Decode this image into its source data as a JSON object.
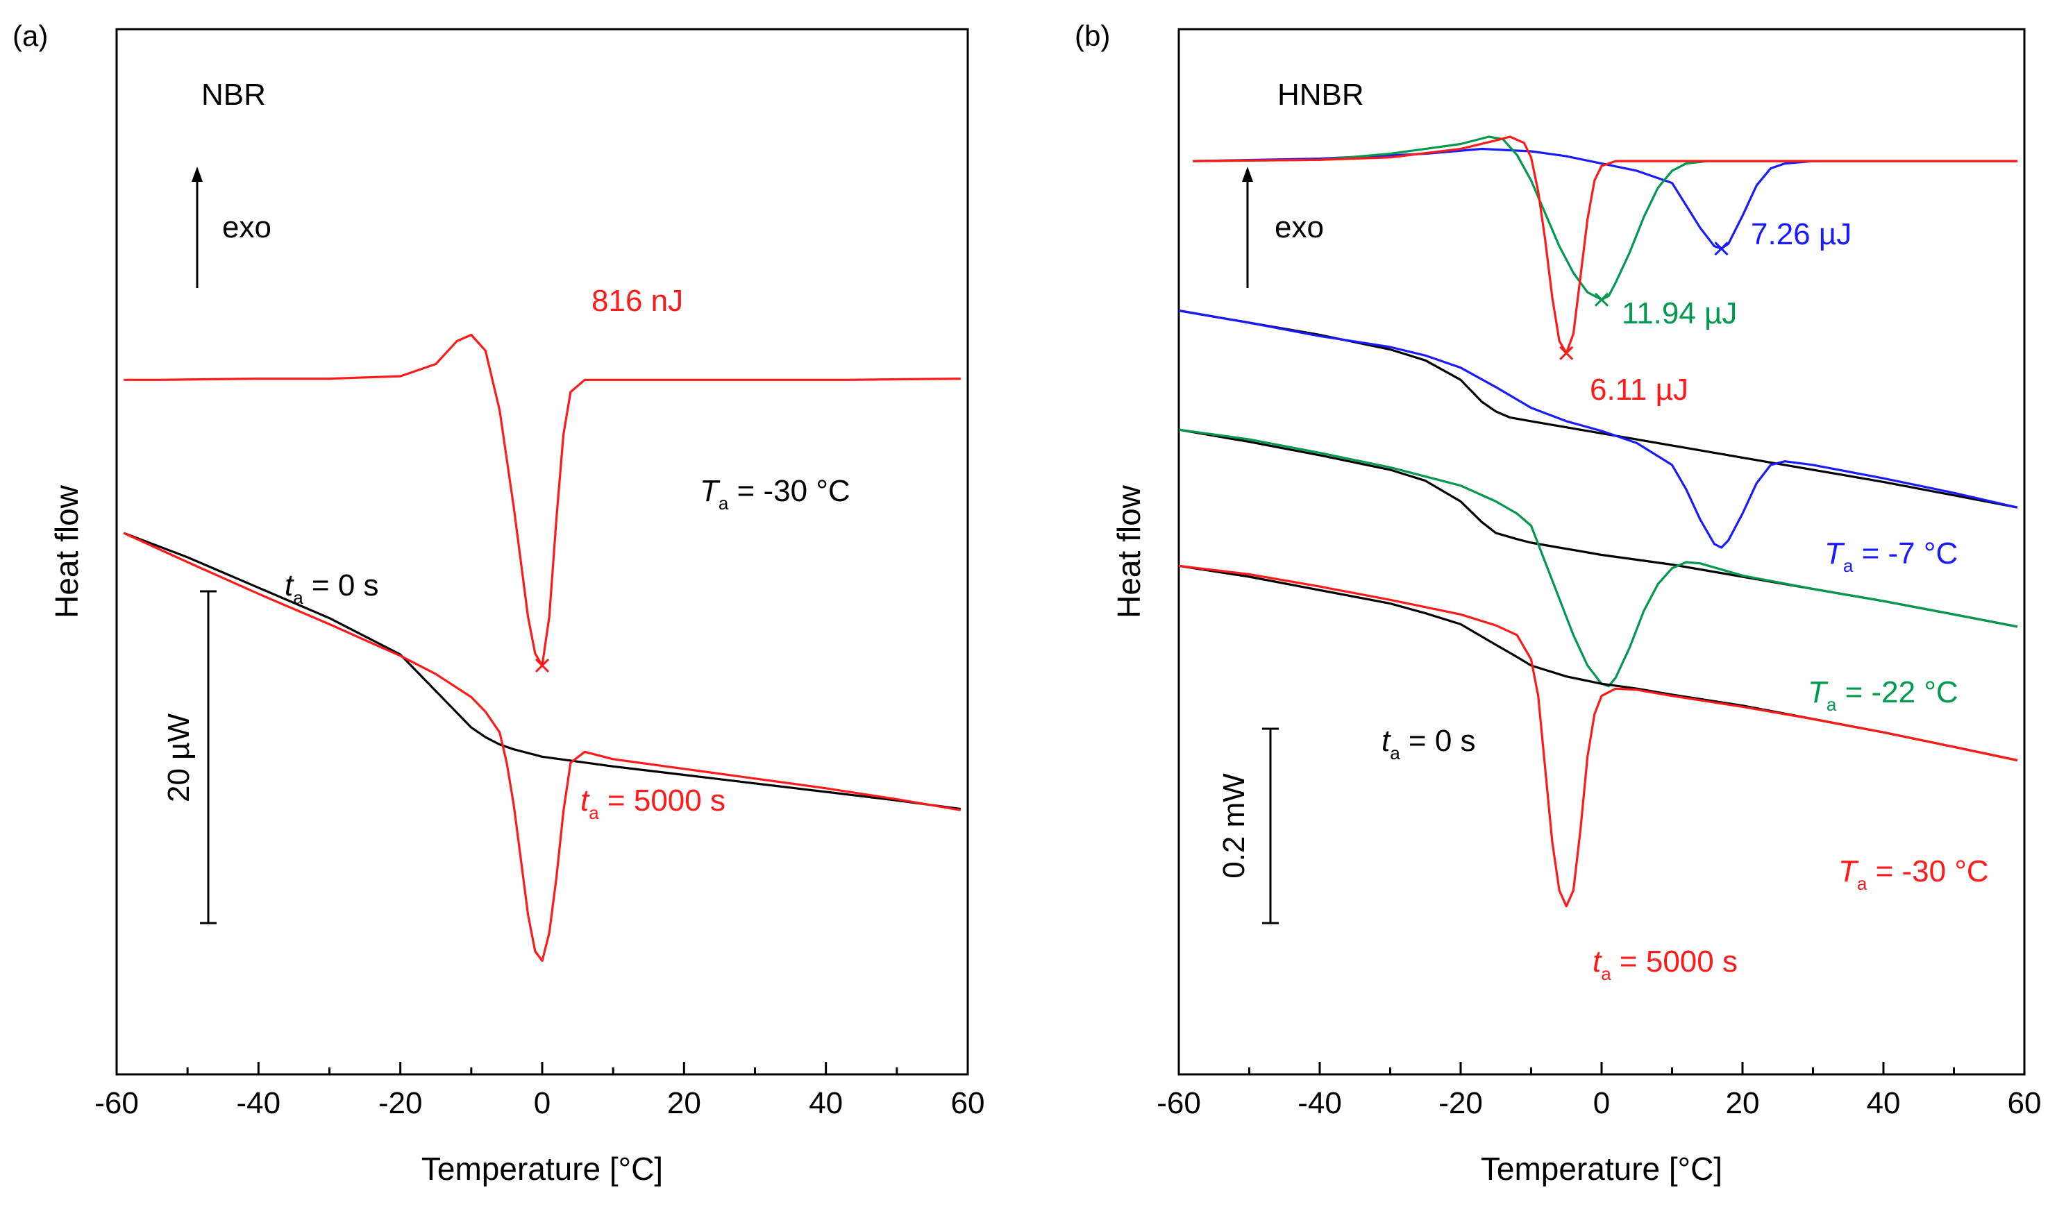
{
  "figure": {
    "panels": [
      {
        "tag": "(a)",
        "title": "NBR"
      },
      {
        "tag": "(b)",
        "title": "HNBR"
      }
    ],
    "colors": {
      "black": "#000000",
      "red": "#ff1a1a",
      "green": "#00994d",
      "blue": "#1a1aff"
    }
  },
  "chart_data": [
    {
      "type": "line",
      "panel": "(a)",
      "title": "NBR",
      "xlabel": "Temperature [°C]",
      "ylabel": "Heat flow",
      "xlim": [
        -60,
        60
      ],
      "xticks": [
        -60,
        -40,
        -20,
        0,
        20,
        40,
        60
      ],
      "x_tick_labels": [
        "-60",
        "-40",
        "-20",
        "0",
        "20",
        "40",
        "60"
      ],
      "scale_bar": "20 µW",
      "y_unit": "µW",
      "ylim": [
        -48,
        22
      ],
      "series": [
        {
          "name": "difference curve (exo up)",
          "color": "#ff1a1a",
          "x": [
            -59,
            -54,
            -40,
            -30,
            -20,
            -15,
            -12,
            -10,
            -8,
            -6,
            -4,
            -2,
            -1,
            0,
            1,
            2,
            3,
            4,
            6,
            20,
            40,
            43,
            59
          ],
          "y": [
            0,
            0,
            0.1,
            0.1,
            0.3,
            1.3,
            3.2,
            3.7,
            2.4,
            -2.5,
            -10.5,
            -19.5,
            -22.5,
            -23.5,
            -19.5,
            -11.5,
            -4.5,
            -1.0,
            0,
            0,
            0,
            0,
            0.1
          ]
        },
        {
          "name": "t_a = 0 s",
          "color": "#000000",
          "x": [
            -59,
            -50,
            -40,
            -30,
            -20,
            -15,
            -10,
            -8,
            -6,
            -4,
            0,
            10,
            20,
            30,
            40,
            50,
            59
          ],
          "y": [
            -12.6,
            -14.6,
            -17.1,
            -19.6,
            -22.6,
            -25.6,
            -28.6,
            -29.4,
            -30.0,
            -30.4,
            -31.0,
            -31.8,
            -32.5,
            -33.2,
            -33.9,
            -34.6,
            -35.3
          ]
        },
        {
          "name": "t_a = 5000 s",
          "color": "#ff1a1a",
          "x": [
            -59,
            -50,
            -40,
            -30,
            -20,
            -15,
            -10,
            -8,
            -6,
            -5,
            -4,
            -3,
            -2,
            -1,
            0,
            1,
            2,
            3,
            4,
            6,
            10,
            20,
            30,
            40,
            50,
            59
          ],
          "y": [
            -12.6,
            -15.0,
            -17.6,
            -20.1,
            -22.7,
            -24.2,
            -26.1,
            -27.3,
            -29.0,
            -31.5,
            -35.0,
            -39.5,
            -44.0,
            -47.0,
            -47.8,
            -45.5,
            -41.0,
            -35.5,
            -31.5,
            -30.6,
            -31.2,
            -32.0,
            -32.8,
            -33.6,
            -34.5,
            -35.4
          ]
        }
      ],
      "annotations": [
        {
          "text": "816 nJ",
          "color": "#ff1a1a"
        },
        {
          "text": "exo",
          "color": "#000000"
        },
        {
          "label": "T",
          "sub": "a",
          "value": " = -30 °C",
          "color": "#000000"
        },
        {
          "label": "t",
          "sub": "a",
          "value": " = 0 s",
          "color": "#000000"
        },
        {
          "label": "t",
          "sub": "a",
          "value": " = 5000 s",
          "color": "#ff1a1a"
        }
      ]
    },
    {
      "type": "line",
      "panel": "(b)",
      "title": "HNBR",
      "xlabel": "Temperature [°C]",
      "ylabel": "Heat flow",
      "xlim": [
        -60,
        60
      ],
      "xticks": [
        -60,
        -40,
        -20,
        0,
        20,
        40,
        60
      ],
      "x_tick_labels": [
        "-60",
        "-40",
        "-20",
        "0",
        "20",
        "40",
        "60"
      ],
      "scale_bar": "0.2 mW",
      "y_unit": "mW",
      "ylim": [
        -0.66,
        0.04
      ],
      "series": [
        {
          "name": "difference curve T_a = -7 °C",
          "color": "#1a1aff",
          "x": [
            -58,
            -40,
            -25,
            -17,
            -10,
            -5,
            0,
            5,
            10,
            14,
            16,
            17,
            18,
            20,
            22,
            24,
            26,
            30,
            45,
            59
          ],
          "y": [
            0,
            0.002,
            0.006,
            0.01,
            0.008,
            0.004,
            -0.002,
            -0.008,
            -0.018,
            -0.055,
            -0.07,
            -0.072,
            -0.068,
            -0.045,
            -0.02,
            -0.006,
            -0.002,
            0,
            0,
            0
          ]
        },
        {
          "name": "difference curve T_a = -22 °C",
          "color": "#00994d",
          "x": [
            -58,
            -40,
            -30,
            -20,
            -16,
            -14,
            -12,
            -10,
            -8,
            -6,
            -4,
            -2,
            0,
            1,
            2,
            4,
            6,
            8,
            10,
            12,
            15,
            20,
            59
          ],
          "y": [
            0,
            0.001,
            0.006,
            0.014,
            0.02,
            0.018,
            0.005,
            -0.016,
            -0.043,
            -0.07,
            -0.092,
            -0.108,
            -0.114,
            -0.111,
            -0.1,
            -0.075,
            -0.046,
            -0.022,
            -0.008,
            -0.002,
            0,
            0,
            0
          ]
        },
        {
          "name": "difference curve T_a = -30 °C",
          "color": "#ff1a1a",
          "x": [
            -58,
            -40,
            -30,
            -20,
            -15,
            -13,
            -11,
            -10,
            -9,
            -8,
            -7,
            -6,
            -5,
            -4,
            -3,
            -2,
            -1,
            0,
            2,
            59
          ],
          "y": [
            0,
            0.001,
            0.003,
            0.01,
            0.017,
            0.02,
            0.015,
            0.003,
            -0.025,
            -0.065,
            -0.112,
            -0.148,
            -0.158,
            -0.142,
            -0.095,
            -0.048,
            -0.016,
            -0.004,
            0,
            0
          ]
        },
        {
          "name": "t_a = 0 s (T_a = -7 °C)",
          "color": "#000000",
          "x": [
            -60,
            -50,
            -40,
            -30,
            -25,
            -20,
            -17,
            -15,
            -13,
            -10,
            0,
            10,
            20,
            30,
            40,
            50,
            59
          ],
          "y": [
            -0.123,
            -0.133,
            -0.143,
            -0.155,
            -0.164,
            -0.18,
            -0.198,
            -0.206,
            -0.211,
            -0.214,
            -0.224,
            -0.234,
            -0.244,
            -0.254,
            -0.264,
            -0.275,
            -0.285
          ]
        },
        {
          "name": "t_a = 5000 s (T_a = -7 °C)",
          "color": "#1a1aff",
          "x": [
            -60,
            -50,
            -40,
            -30,
            -25,
            -20,
            -15,
            -10,
            -5,
            0,
            5,
            10,
            12,
            14,
            16,
            17,
            18,
            20,
            22,
            24,
            26,
            30,
            40,
            50,
            59
          ],
          "y": [
            -0.123,
            -0.133,
            -0.144,
            -0.153,
            -0.16,
            -0.17,
            -0.186,
            -0.203,
            -0.214,
            -0.222,
            -0.232,
            -0.25,
            -0.27,
            -0.295,
            -0.315,
            -0.318,
            -0.312,
            -0.29,
            -0.265,
            -0.25,
            -0.247,
            -0.25,
            -0.261,
            -0.273,
            -0.285
          ]
        },
        {
          "name": "t_a = 0 s (T_a = -22 °C)",
          "color": "#000000",
          "x": [
            -60,
            -50,
            -40,
            -30,
            -25,
            -20,
            -17,
            -15,
            -12,
            -10,
            0,
            10,
            20,
            30,
            40,
            50,
            59
          ],
          "y": [
            -0.221,
            -0.231,
            -0.242,
            -0.254,
            -0.263,
            -0.28,
            -0.297,
            -0.306,
            -0.311,
            -0.314,
            -0.324,
            -0.332,
            -0.342,
            -0.352,
            -0.362,
            -0.373,
            -0.383
          ]
        },
        {
          "name": "t_a = 5000 s (T_a = -22 °C)",
          "color": "#00994d",
          "x": [
            -60,
            -50,
            -40,
            -30,
            -20,
            -15,
            -12,
            -10,
            -8,
            -6,
            -4,
            -2,
            0,
            1,
            2,
            4,
            6,
            8,
            10,
            12,
            14,
            20,
            30,
            40,
            50,
            59
          ],
          "y": [
            -0.221,
            -0.229,
            -0.24,
            -0.252,
            -0.267,
            -0.28,
            -0.29,
            -0.3,
            -0.33,
            -0.36,
            -0.39,
            -0.415,
            -0.43,
            -0.432,
            -0.425,
            -0.4,
            -0.37,
            -0.348,
            -0.335,
            -0.33,
            -0.331,
            -0.341,
            -0.352,
            -0.362,
            -0.373,
            -0.383
          ]
        },
        {
          "name": "t_a = 0 s (T_a = -30 °C)",
          "color": "#000000",
          "x": [
            -60,
            -50,
            -40,
            -30,
            -25,
            -20,
            -15,
            -12,
            -10,
            -5,
            0,
            5,
            10,
            20,
            30,
            40,
            50,
            59
          ],
          "y": [
            -0.333,
            -0.342,
            -0.353,
            -0.364,
            -0.372,
            -0.381,
            -0.398,
            -0.408,
            -0.415,
            -0.424,
            -0.43,
            -0.434,
            -0.439,
            -0.448,
            -0.459,
            -0.47,
            -0.482,
            -0.493
          ]
        },
        {
          "name": "t_a = 5000 s (T_a = -30 °C)",
          "color": "#ff1a1a",
          "x": [
            -60,
            -50,
            -40,
            -30,
            -20,
            -15,
            -12,
            -10,
            -9,
            -8,
            -7,
            -6,
            -5,
            -4,
            -3,
            -2,
            -1,
            0,
            2,
            5,
            10,
            20,
            30,
            40,
            50,
            59
          ],
          "y": [
            -0.333,
            -0.34,
            -0.35,
            -0.361,
            -0.373,
            -0.382,
            -0.39,
            -0.41,
            -0.44,
            -0.5,
            -0.56,
            -0.6,
            -0.613,
            -0.6,
            -0.55,
            -0.49,
            -0.455,
            -0.44,
            -0.434,
            -0.435,
            -0.44,
            -0.449,
            -0.459,
            -0.47,
            -0.482,
            -0.493
          ]
        }
      ],
      "annotations": [
        {
          "text": "7.26 µJ",
          "color": "#1a1aff"
        },
        {
          "text": "11.94 µJ",
          "color": "#00994d"
        },
        {
          "text": "6.11 µJ",
          "color": "#ff1a1a"
        },
        {
          "text": "exo",
          "color": "#000000"
        },
        {
          "label": "T",
          "sub": "a",
          "value": " = -7 °C",
          "color": "#1a1aff"
        },
        {
          "label": "T",
          "sub": "a",
          "value": " = -22 °C",
          "color": "#00994d"
        },
        {
          "label": "T",
          "sub": "a",
          "value": " = -30 °C",
          "color": "#ff1a1a"
        },
        {
          "label": "t",
          "sub": "a",
          "value": " = 0 s",
          "color": "#000000"
        },
        {
          "label": "t",
          "sub": "a",
          "value": " = 5000 s",
          "color": "#ff1a1a"
        }
      ]
    }
  ]
}
